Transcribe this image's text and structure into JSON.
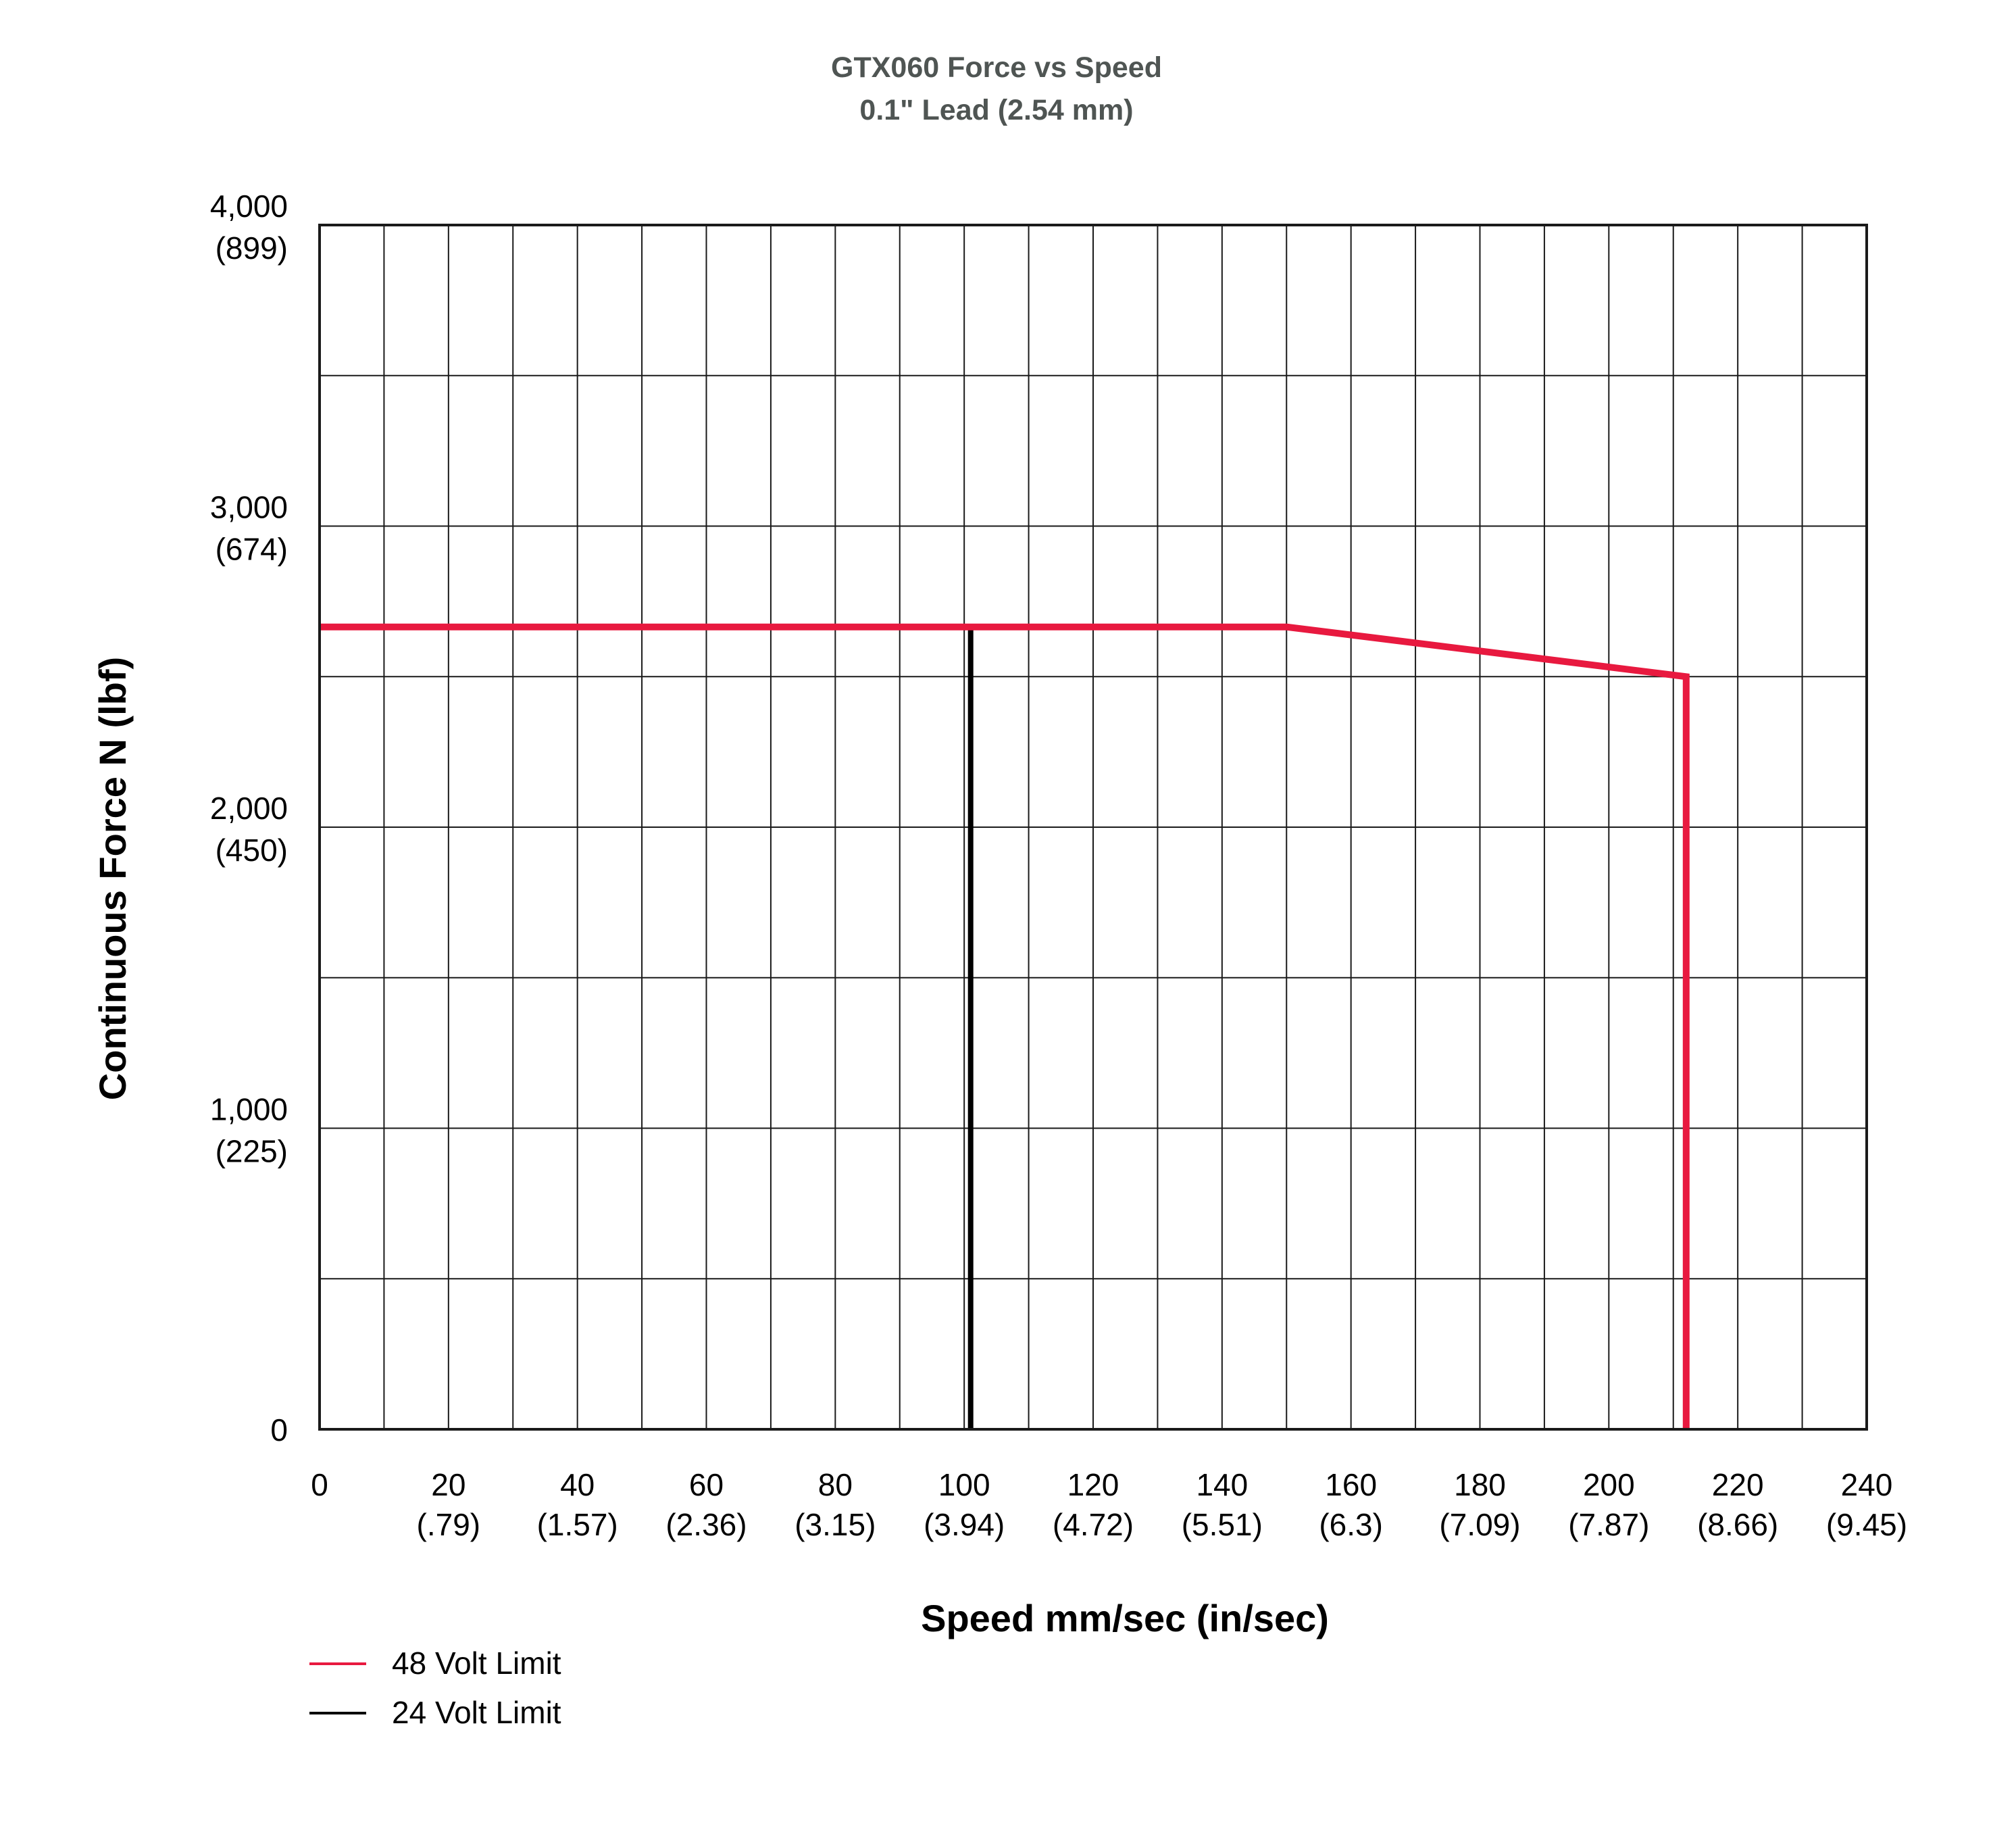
{
  "chart_data": {
    "type": "line",
    "title": "GTX060 Force vs Speed",
    "subtitle": "0.1\" Lead (2.54 mm)",
    "xlabel": "Speed mm/sec (in/sec)",
    "ylabel": "Continuous Force N (lbf)",
    "xlim": [
      0,
      240
    ],
    "ylim": [
      0,
      4000
    ],
    "x_grid_step": 10,
    "y_grid_step": 500,
    "grid": true,
    "legend_position": "bottom-left",
    "x_ticks": [
      {
        "value": 0,
        "label": "0",
        "sublabel": ""
      },
      {
        "value": 20,
        "label": "20",
        "sublabel": "(.79)"
      },
      {
        "value": 40,
        "label": "40",
        "sublabel": "(1.57)"
      },
      {
        "value": 60,
        "label": "60",
        "sublabel": "(2.36)"
      },
      {
        "value": 80,
        "label": "80",
        "sublabel": "(3.15)"
      },
      {
        "value": 100,
        "label": "100",
        "sublabel": "(3.94)"
      },
      {
        "value": 120,
        "label": "120",
        "sublabel": "(4.72)"
      },
      {
        "value": 140,
        "label": "140",
        "sublabel": "(5.51)"
      },
      {
        "value": 160,
        "label": "160",
        "sublabel": "(6.3)"
      },
      {
        "value": 180,
        "label": "180",
        "sublabel": "(7.09)"
      },
      {
        "value": 200,
        "label": "200",
        "sublabel": "(7.87)"
      },
      {
        "value": 220,
        "label": "220",
        "sublabel": "(8.66)"
      },
      {
        "value": 240,
        "label": "240",
        "sublabel": "(9.45)"
      }
    ],
    "y_ticks": [
      {
        "value": 0,
        "label": "0",
        "sublabel": ""
      },
      {
        "value": 1000,
        "label": "1,000",
        "sublabel": "(225)"
      },
      {
        "value": 2000,
        "label": "2,000",
        "sublabel": "(450)"
      },
      {
        "value": 3000,
        "label": "3,000",
        "sublabel": "(674)"
      },
      {
        "value": 4000,
        "label": "4,000",
        "sublabel": "(899)"
      }
    ],
    "series": [
      {
        "name": "48 Volt Limit",
        "color": "#e8193f",
        "x": [
          0,
          150,
          212,
          212
        ],
        "y": [
          2665,
          2665,
          2500,
          0
        ]
      },
      {
        "name": "24 Volt Limit",
        "color": "#000000",
        "x": [
          101,
          101
        ],
        "y": [
          2665,
          0
        ]
      }
    ]
  }
}
